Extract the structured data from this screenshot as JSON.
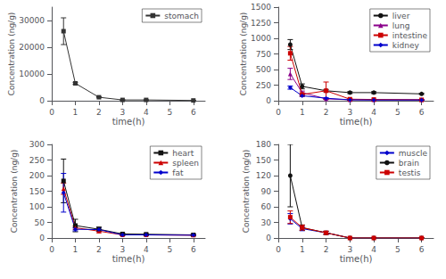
{
  "chart_data": [
    {
      "type": "line",
      "xlabel": "time(h)",
      "ylabel": "Concentration (ng/g)",
      "x": [
        0.5,
        1,
        2,
        3,
        4,
        6
      ],
      "xlim": [
        0,
        6.5
      ],
      "xticks": [
        0,
        1,
        2,
        3,
        4,
        5,
        6
      ],
      "ylim": [
        0,
        35000
      ],
      "yticks": [
        0,
        10000,
        20000,
        30000
      ],
      "grid": false,
      "legend": "upper right",
      "series": [
        {
          "name": "stomach",
          "color": "#333333",
          "marker": "square",
          "values": [
            26000,
            6500,
            1300,
            300,
            300,
            100
          ],
          "errors": [
            5000,
            400,
            200,
            50,
            50,
            30
          ]
        }
      ]
    },
    {
      "type": "line",
      "xlabel": "time(h)",
      "ylabel": "Concentration (ng/g)",
      "x": [
        0.5,
        1,
        2,
        3,
        4,
        6
      ],
      "xlim": [
        0,
        6.5
      ],
      "xticks": [
        0,
        1,
        2,
        3,
        4,
        5,
        6
      ],
      "ylim": [
        0,
        1500
      ],
      "yticks": [
        0,
        250,
        500,
        750,
        1000,
        1250,
        1500
      ],
      "grid": false,
      "legend": "upper right",
      "series": [
        {
          "name": "liver",
          "color": "#111111",
          "marker": "circle",
          "values": [
            900,
            230,
            160,
            130,
            130,
            110
          ],
          "errors": [
            80,
            40,
            20,
            15,
            15,
            10
          ]
        },
        {
          "name": "lung",
          "color": "#8B008B",
          "marker": "triangle",
          "values": [
            430,
            130,
            30,
            15,
            15,
            15
          ],
          "errors": [
            90,
            25,
            8,
            4,
            4,
            4
          ]
        },
        {
          "name": "intestine",
          "color": "#CC0000",
          "marker": "square",
          "values": [
            760,
            100,
            160,
            25,
            20,
            15
          ],
          "errors": [
            110,
            25,
            140,
            8,
            4,
            4
          ]
        },
        {
          "name": "kidney",
          "color": "#0000CC",
          "marker": "diamond",
          "values": [
            210,
            80,
            40,
            15,
            12,
            12
          ],
          "errors": [
            25,
            12,
            8,
            4,
            3,
            3
          ]
        }
      ]
    },
    {
      "type": "line",
      "xlabel": "time(h)",
      "ylabel": "Concentration (ng/g)",
      "x": [
        0.5,
        1,
        2,
        3,
        4,
        6
      ],
      "xlim": [
        0,
        6.5
      ],
      "xticks": [
        0,
        1,
        2,
        3,
        4,
        5,
        6
      ],
      "ylim": [
        0,
        300
      ],
      "yticks": [
        0,
        50,
        100,
        150,
        200,
        250,
        300
      ],
      "grid": false,
      "legend": "upper right",
      "series": [
        {
          "name": "heart",
          "color": "#111111",
          "marker": "square",
          "values": [
            183,
            40,
            28,
            13,
            12,
            10
          ],
          "errors": [
            70,
            20,
            7,
            3,
            2,
            2
          ]
        },
        {
          "name": "spleen",
          "color": "#CC0000",
          "marker": "triangle",
          "values": [
            158,
            33,
            22,
            10,
            10,
            9
          ],
          "errors": [
            18,
            5,
            5,
            2,
            2,
            2
          ]
        },
        {
          "name": "fat",
          "color": "#0000CC",
          "marker": "diamond",
          "values": [
            145,
            28,
            27,
            10,
            10,
            9
          ],
          "errors": [
            62,
            5,
            5,
            2,
            2,
            2
          ]
        }
      ]
    },
    {
      "type": "line",
      "xlabel": "time(h)",
      "ylabel": "Concentration (ng/g)",
      "x": [
        0.5,
        1,
        2,
        3,
        4,
        6
      ],
      "xlim": [
        0,
        6.5
      ],
      "xticks": [
        0,
        1,
        2,
        3,
        4,
        5,
        6
      ],
      "ylim": [
        0,
        180
      ],
      "yticks": [
        0,
        30,
        60,
        90,
        120,
        150,
        180
      ],
      "grid": false,
      "legend": "upper right",
      "series": [
        {
          "name": "muscle",
          "color": "#0000CC",
          "marker": "diamond",
          "values": [
            37,
            18,
            10,
            0,
            0,
            0
          ],
          "errors": [
            10,
            4,
            3,
            0,
            0,
            0
          ]
        },
        {
          "name": "brain",
          "color": "#111111",
          "marker": "circle",
          "values": [
            120,
            20,
            10,
            0,
            0,
            0
          ],
          "errors": [
            60,
            5,
            3,
            0,
            0,
            0
          ]
        },
        {
          "name": "testis",
          "color": "#CC0000",
          "marker": "square",
          "values": [
            40,
            20,
            10,
            0,
            0,
            0
          ],
          "errors": [
            12,
            5,
            3,
            0,
            0,
            0
          ]
        }
      ]
    }
  ]
}
